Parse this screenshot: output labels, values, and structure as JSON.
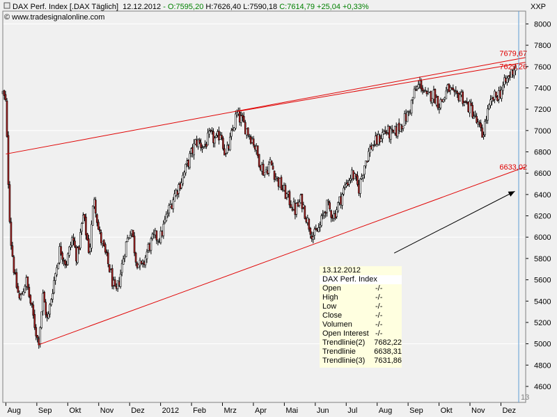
{
  "header": {
    "title_prefix": "DAX Perf. Index [.DAX  Täglich]",
    "date": "12.12.2012",
    "ohlc_green": " - O:7595,20",
    "ohlc_black": " H:7626,40 L:7590,18",
    "ohlc_close": " C:7614,79 +25,04 +0,33%",
    "copyright": "© www.tradesignalonline.com",
    "symbol_tag": "XXP",
    "corner_number": "13"
  },
  "colors": {
    "background": "#f0f0f0",
    "candle_up": "#ffffff",
    "candle_down": "#b22222",
    "trendline": "#e00000",
    "grid": "#ffffff",
    "info_box": "#ffffe0",
    "header_green": "#008000"
  },
  "info_box": {
    "date": "13.12.2012",
    "symbol": "DAX Perf. Index",
    "rows": [
      {
        "key": "Open",
        "value": "-/-"
      },
      {
        "key": "High",
        "value": "-/-"
      },
      {
        "key": "Low",
        "value": "-/-"
      },
      {
        "key": "Close",
        "value": "-/-"
      },
      {
        "key": "Volumen",
        "value": "-/-"
      },
      {
        "key": "Open Interest",
        "value": "-/-"
      },
      {
        "key": "Trendlinie(2)",
        "value": "7682,22"
      },
      {
        "key": "Trendlinie",
        "value": "6638,31"
      },
      {
        "key": "Trendlinie(3)",
        "value": "7631,86"
      }
    ]
  },
  "chart_data": {
    "type": "candlestick",
    "title": "DAX Perf. Index [.DAX  Täglich]",
    "y_ticks": [
      "4600",
      "4800",
      "5000",
      "5200",
      "5400",
      "5600",
      "5800",
      "6000",
      "6200",
      "6400",
      "6600",
      "6800",
      "7000",
      "7200",
      "7400",
      "7600",
      "7800",
      "8000"
    ],
    "ylim": [
      4450,
      8120
    ],
    "x_tick_labels": [
      "Aug",
      "Sep",
      "Okt",
      "Nov",
      "Dez",
      "2012",
      "Feb",
      "Mrz",
      "Apr",
      "Mai",
      "Jun",
      "Jul",
      "Aug",
      "Sep",
      "Okt",
      "Nov",
      "Dez"
    ],
    "x_tick_months": [
      0,
      1,
      2,
      3,
      4,
      5,
      6,
      7,
      8,
      9,
      10,
      11,
      12,
      13,
      14,
      15,
      16
    ],
    "xlim": [
      -0.1,
      16.8
    ],
    "price_path": [
      [
        -0.1,
        7350
      ],
      [
        0.0,
        7250
      ],
      [
        0.05,
        6750
      ],
      [
        0.15,
        6000
      ],
      [
        0.3,
        5600
      ],
      [
        0.45,
        5400
      ],
      [
        0.65,
        5600
      ],
      [
        0.85,
        5300
      ],
      [
        1.05,
        5000
      ],
      [
        1.2,
        5450
      ],
      [
        1.35,
        5200
      ],
      [
        1.5,
        5500
      ],
      [
        1.75,
        5900
      ],
      [
        1.95,
        5750
      ],
      [
        2.15,
        6000
      ],
      [
        2.3,
        5800
      ],
      [
        2.5,
        6200
      ],
      [
        2.7,
        5850
      ],
      [
        2.85,
        6400
      ],
      [
        3.0,
        6050
      ],
      [
        3.15,
        5900
      ],
      [
        3.35,
        5700
      ],
      [
        3.55,
        5450
      ],
      [
        3.7,
        5650
      ],
      [
        3.85,
        5900
      ],
      [
        4.05,
        6100
      ],
      [
        4.2,
        5800
      ],
      [
        4.4,
        5700
      ],
      [
        4.6,
        5900
      ],
      [
        4.8,
        6000
      ],
      [
        5.0,
        6000
      ],
      [
        5.2,
        6200
      ],
      [
        5.45,
        6400
      ],
      [
        5.7,
        6550
      ],
      [
        5.95,
        6750
      ],
      [
        6.15,
        6900
      ],
      [
        6.4,
        6850
      ],
      [
        6.6,
        6950
      ],
      [
        6.8,
        6900
      ],
      [
        6.95,
        7000
      ],
      [
        7.1,
        6750
      ],
      [
        7.25,
        6900
      ],
      [
        7.45,
        7150
      ],
      [
        7.6,
        7100
      ],
      [
        7.8,
        7000
      ],
      [
        8.0,
        6900
      ],
      [
        8.15,
        6750
      ],
      [
        8.35,
        6600
      ],
      [
        8.55,
        6700
      ],
      [
        8.75,
        6550
      ],
      [
        8.95,
        6450
      ],
      [
        9.15,
        6350
      ],
      [
        9.35,
        6250
      ],
      [
        9.55,
        6350
      ],
      [
        9.75,
        6150
      ],
      [
        9.95,
        6000
      ],
      [
        10.15,
        6100
      ],
      [
        10.35,
        6300
      ],
      [
        10.6,
        6200
      ],
      [
        10.8,
        6350
      ],
      [
        11.0,
        6500
      ],
      [
        11.2,
        6600
      ],
      [
        11.4,
        6450
      ],
      [
        11.6,
        6700
      ],
      [
        11.8,
        6850
      ],
      [
        12.0,
        6900
      ],
      [
        12.25,
        7000
      ],
      [
        12.5,
        6950
      ],
      [
        12.75,
        7050
      ],
      [
        13.0,
        7150
      ],
      [
        13.2,
        7350
      ],
      [
        13.4,
        7450
      ],
      [
        13.6,
        7300
      ],
      [
        13.8,
        7350
      ],
      [
        14.0,
        7250
      ],
      [
        14.15,
        7300
      ],
      [
        14.3,
        7400
      ],
      [
        14.5,
        7300
      ],
      [
        14.7,
        7350
      ],
      [
        14.85,
        7250
      ],
      [
        15.05,
        7200
      ],
      [
        15.25,
        7050
      ],
      [
        15.4,
        6950
      ],
      [
        15.55,
        7150
      ],
      [
        15.75,
        7300
      ],
      [
        15.95,
        7350
      ],
      [
        16.15,
        7450
      ],
      [
        16.35,
        7550
      ],
      [
        16.47,
        7615
      ]
    ],
    "trendlines": [
      {
        "name": "Trendlinie(2)",
        "from": [
          0.0,
          6780
        ],
        "to": [
          16.8,
          7685
        ],
        "label": "7679,67"
      },
      {
        "name": "Trendlinie(3)",
        "from": [
          7.5,
          7180
        ],
        "to": [
          16.8,
          7640
        ],
        "label": "7629,26"
      },
      {
        "name": "Trendlinie",
        "from": [
          1.05,
          4990
        ],
        "to": [
          16.8,
          6660
        ],
        "label": "6633,02"
      }
    ],
    "arrow": {
      "from": [
        12.55,
        5850
      ],
      "to": [
        16.45,
        6430
      ]
    }
  }
}
